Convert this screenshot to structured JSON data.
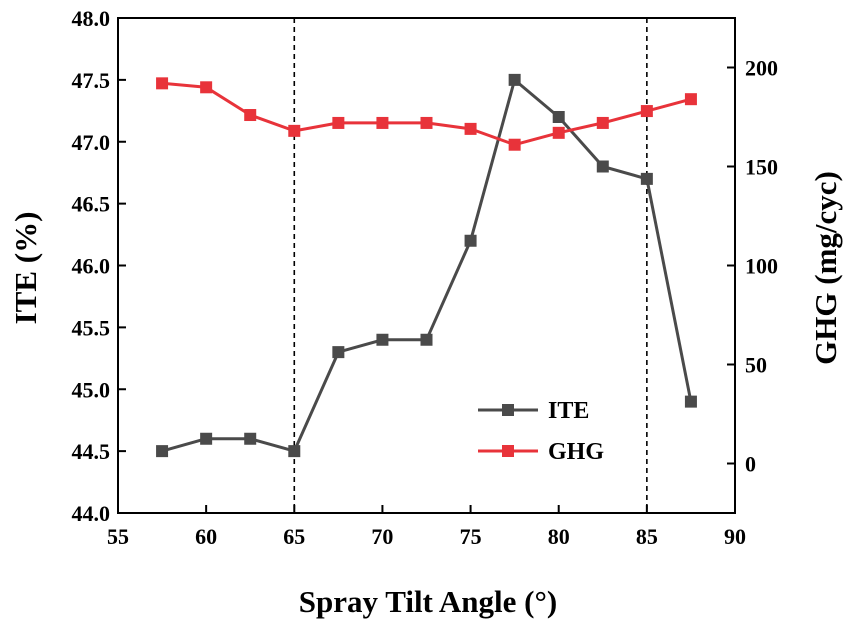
{
  "chart_data": {
    "type": "line",
    "xlabel": "Spray Tilt Angle (°)",
    "ylabel_left": "ITE (%)",
    "ylabel_right": "GHG (mg/cyc)",
    "xlim": [
      55,
      90
    ],
    "ylim_left": [
      44.0,
      48.0
    ],
    "ylim_right": [
      -25,
      225
    ],
    "x_ticks": [
      "55",
      "60",
      "65",
      "70",
      "75",
      "80",
      "85",
      "90"
    ],
    "y_left_ticks": [
      "44.0",
      "44.5",
      "45.0",
      "45.5",
      "46.0",
      "46.5",
      "47.0",
      "47.5",
      "48.0"
    ],
    "y_right_ticks": [
      "0",
      "50",
      "100",
      "150",
      "200"
    ],
    "vlines": [
      65,
      85
    ],
    "x": [
      57.5,
      60,
      62.5,
      65,
      67.5,
      70,
      72.5,
      75,
      77.5,
      80,
      82.5,
      85,
      87.5
    ],
    "series": [
      {
        "name": "ITE",
        "axis": "left",
        "color": "#4a4a4a",
        "values": [
          44.5,
          44.6,
          44.6,
          44.5,
          45.3,
          45.4,
          45.4,
          46.2,
          47.5,
          47.2,
          46.8,
          46.7,
          44.9
        ]
      },
      {
        "name": "GHG",
        "axis": "right",
        "color": "#e8333a",
        "values": [
          192,
          190,
          176,
          168,
          172,
          172,
          172,
          169,
          161,
          167,
          172,
          178,
          184
        ]
      }
    ],
    "legend_position": "bottom-right"
  }
}
